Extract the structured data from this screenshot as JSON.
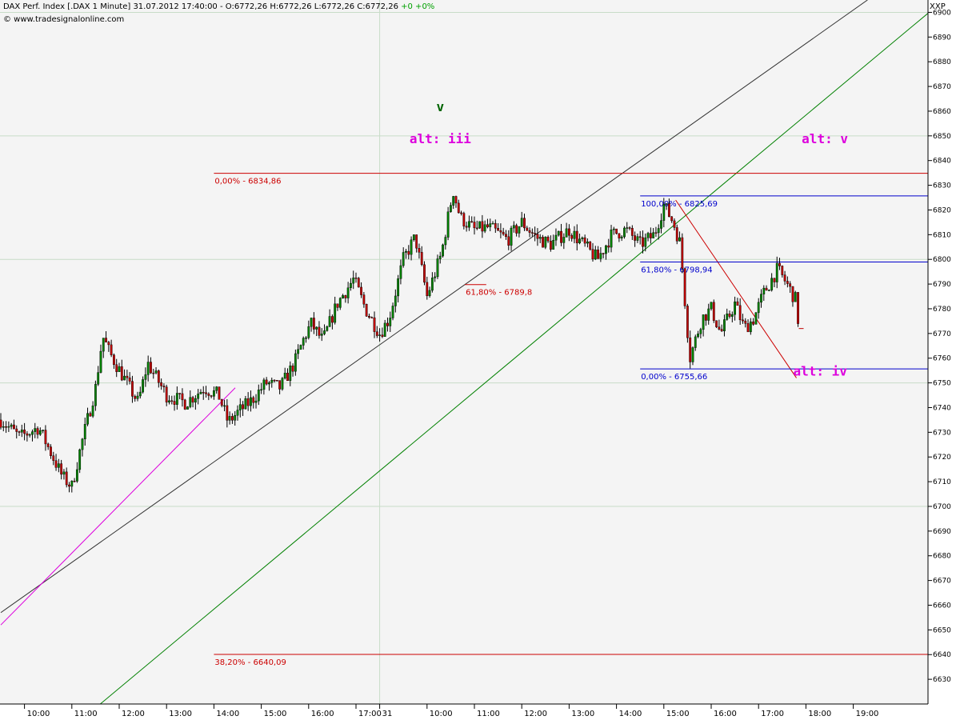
{
  "header": {
    "symbol_info": "DAX Perf. Index [.DAX  1 Minute] 31.07.2012 17:40:00 - O:6772,26 H:6772,26 L:6772,26 C:6772,26",
    "change": "+0 +0%",
    "source": "© www.tradesignalonline.com",
    "corner_label": "XXP"
  },
  "colors": {
    "background": "#f4f4f4",
    "grid": "#c8dcc8",
    "candle_up": "#008000",
    "candle_down": "#c00000",
    "fib_red": "#cc0000",
    "fib_blue": "#0000cc",
    "wave_purple": "#dd00dd",
    "wave_green": "#006400",
    "channel_black": "#303030",
    "channel_green": "#008000"
  },
  "chart_data": {
    "type": "candlestick",
    "title": "DAX Perf. Index [.DAX  1 Minute]",
    "ylim": [
      6620,
      6905
    ],
    "y_ticks": [
      6630,
      6640,
      6650,
      6660,
      6670,
      6680,
      6690,
      6700,
      6710,
      6720,
      6730,
      6740,
      6750,
      6760,
      6770,
      6780,
      6790,
      6800,
      6810,
      6820,
      6830,
      6840,
      6850,
      6860,
      6870,
      6880,
      6890,
      6900
    ],
    "x_ticks": [
      "10:00",
      "11:00",
      "12:00",
      "13:00",
      "14:00",
      "15:00",
      "16:00",
      "17:00",
      "31",
      "10:00",
      "11:00",
      "12:00",
      "13:00",
      "14:00",
      "15:00",
      "16:00",
      "17:00",
      "18:00",
      "19:00"
    ],
    "x_tick_slots": [
      0.5,
      1.5,
      2.5,
      3.5,
      4.5,
      5.5,
      6.5,
      7.5,
      8,
      9,
      10,
      11,
      12,
      13,
      14,
      15,
      16,
      17,
      18
    ],
    "grid_h_values": [
      6700,
      6750,
      6800,
      6850,
      6900
    ],
    "grid_v_slots": [
      8
    ],
    "price_path": [
      [
        0,
        6735
      ],
      [
        0.4,
        6728
      ],
      [
        0.8,
        6732
      ],
      [
        1.3,
        6712
      ],
      [
        1.5,
        6708
      ],
      [
        1.7,
        6725
      ],
      [
        2.0,
        6748
      ],
      [
        2.15,
        6769
      ],
      [
        2.3,
        6762
      ],
      [
        2.6,
        6752
      ],
      [
        2.9,
        6742
      ],
      [
        3.1,
        6758
      ],
      [
        3.5,
        6745
      ],
      [
        3.9,
        6742
      ],
      [
        4.3,
        6748
      ],
      [
        4.6,
        6745
      ],
      [
        4.8,
        6734
      ],
      [
        5.0,
        6738
      ],
      [
        5.3,
        6743
      ],
      [
        5.6,
        6750
      ],
      [
        5.9,
        6748
      ],
      [
        6.2,
        6758
      ],
      [
        6.4,
        6768
      ],
      [
        6.55,
        6774
      ],
      [
        6.8,
        6767
      ],
      [
        7.1,
        6782
      ],
      [
        7.45,
        6792
      ],
      [
        7.7,
        6780
      ],
      [
        8.0,
        6770
      ],
      [
        8.2,
        6776
      ],
      [
        8.5,
        6800
      ],
      [
        8.75,
        6809
      ],
      [
        9.0,
        6785
      ],
      [
        9.3,
        6802
      ],
      [
        9.55,
        6828
      ],
      [
        9.7,
        6817
      ],
      [
        10.0,
        6812
      ],
      [
        10.3,
        6813
      ],
      [
        10.7,
        6808
      ],
      [
        11.0,
        6815
      ],
      [
        11.3,
        6809
      ],
      [
        11.6,
        6806
      ],
      [
        12.0,
        6812
      ],
      [
        12.3,
        6806
      ],
      [
        12.6,
        6800
      ],
      [
        12.9,
        6810
      ],
      [
        13.2,
        6812
      ],
      [
        13.5,
        6806
      ],
      [
        13.8,
        6810
      ],
      [
        14.0,
        6822
      ],
      [
        14.2,
        6815
      ],
      [
        14.35,
        6806
      ],
      [
        14.45,
        6782
      ],
      [
        14.55,
        6760
      ],
      [
        14.8,
        6776
      ],
      [
        15.0,
        6780
      ],
      [
        15.2,
        6770
      ],
      [
        15.5,
        6782
      ],
      [
        15.7,
        6772
      ],
      [
        15.9,
        6776
      ],
      [
        16.1,
        6786
      ],
      [
        16.4,
        6796
      ],
      [
        16.6,
        6790
      ],
      [
        16.8,
        6783
      ],
      [
        16.85,
        6772
      ]
    ],
    "wave_labels": [
      {
        "text": "v",
        "slot": 9.28,
        "value": 6860,
        "color": "wave_green"
      },
      {
        "text": "alt: iii",
        "slot": 9.28,
        "value": 6847,
        "color": "wave_purple"
      },
      {
        "text": "alt: v",
        "slot": 17.4,
        "value": 6847,
        "color": "wave_purple"
      },
      {
        "text": "alt: iv",
        "slot": 17.3,
        "value": 6753,
        "color": "wave_purple"
      }
    ],
    "fib_levels": [
      {
        "label": "0,00% - 6834,86",
        "value": 6834.86,
        "from_slot": 4.5,
        "to_slot": 19.6,
        "color": "fib_red"
      },
      {
        "label": "38,20% - 6640,09",
        "value": 6640.09,
        "from_slot": 4.5,
        "to_slot": 19.6,
        "color": "fib_red"
      },
      {
        "label": "61,80% - 6789,8",
        "value": 6789.8,
        "from_slot": 9.8,
        "to_slot": 10.25,
        "color": "fib_red"
      },
      {
        "label": "100,00% - 6825,69",
        "value": 6825.69,
        "from_slot": 13.5,
        "to_slot": 19.6,
        "color": "fib_blue"
      },
      {
        "label": "61,80% - 6798,94",
        "value": 6798.94,
        "from_slot": 13.5,
        "to_slot": 19.6,
        "color": "fib_blue"
      },
      {
        "label": "0,00% - 6755,66",
        "value": 6755.66,
        "from_slot": 13.5,
        "to_slot": 19.6,
        "color": "fib_blue"
      }
    ],
    "trend_lines": [
      {
        "name": "black-channel",
        "from": [
          0,
          6657
        ],
        "to": [
          18.3,
          6905
        ],
        "color": "channel_black"
      },
      {
        "name": "green-channel",
        "from": [
          2.1,
          6620
        ],
        "to": [
          19.6,
          6900
        ],
        "color": "channel_green"
      },
      {
        "name": "purple-channel",
        "from": [
          0,
          6652
        ],
        "to": [
          4.95,
          6748
        ],
        "color": "wave_purple"
      },
      {
        "name": "red-down",
        "from": [
          14.25,
          6824
        ],
        "to": [
          16.8,
          6752
        ],
        "color": "fib_red"
      }
    ]
  }
}
